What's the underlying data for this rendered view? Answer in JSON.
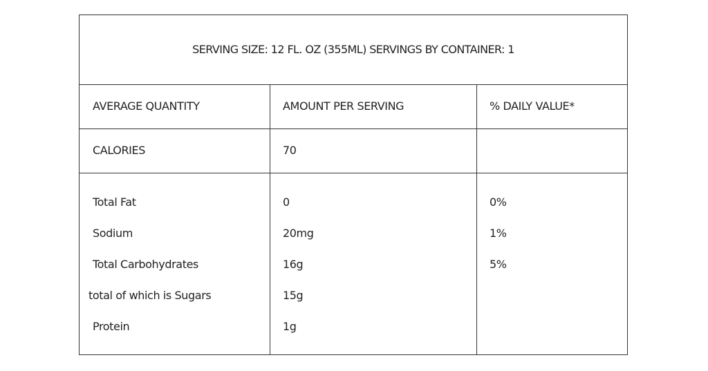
{
  "serving_info": "SERVING SIZE: 12 FL. OZ (355ML) SERVINGS BY CONTAINER: 1",
  "headers": [
    "AVERAGE QUANTITY",
    "AMOUNT PER SERVING",
    "% DAILY VALUE*"
  ],
  "calories": {
    "label": "CALORIES",
    "amount": "70",
    "daily": ""
  },
  "nutrients": [
    {
      "name": "Total Fat",
      "amount": "0",
      "daily": "0%"
    },
    {
      "name": "Sodium",
      "amount": "20mg",
      "daily": "1%"
    },
    {
      "name": "Total Carbohydrates",
      "amount": "16g",
      "daily": "5%"
    },
    {
      "name": "total of which is Sugars",
      "amount": "15g",
      "daily": ""
    },
    {
      "name": "Protein",
      "amount": "1g",
      "daily": ""
    }
  ]
}
